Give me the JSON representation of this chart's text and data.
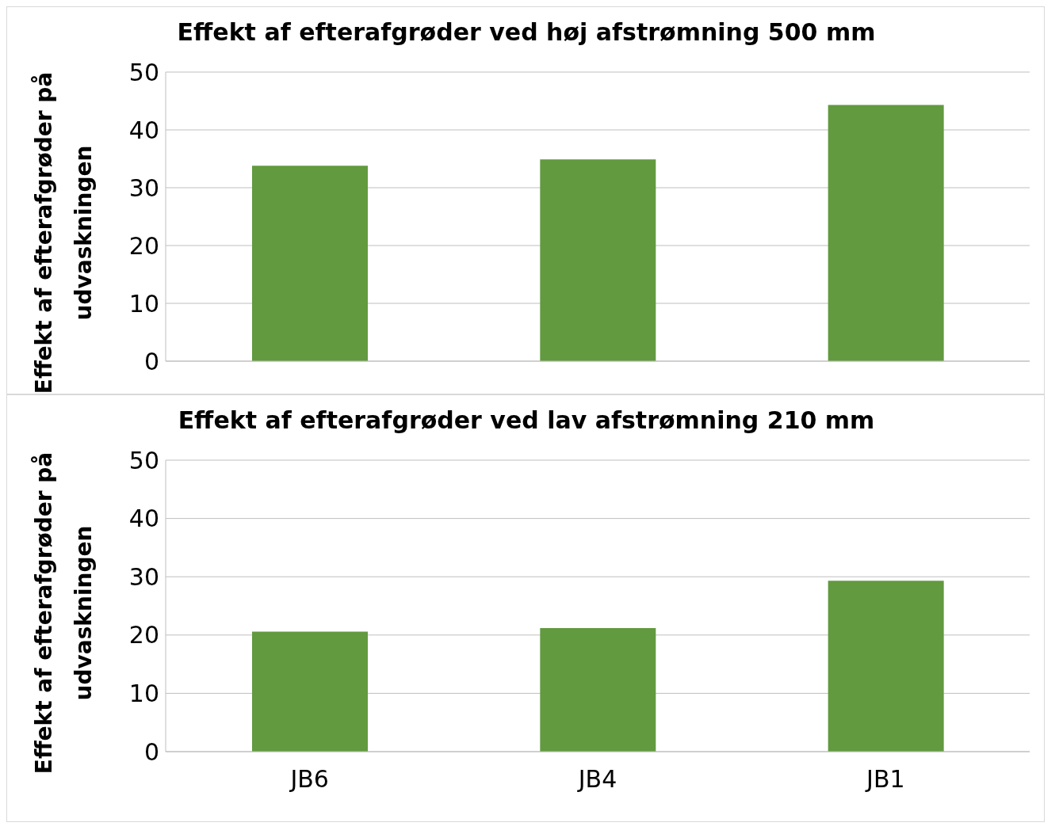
{
  "chart_data": [
    {
      "type": "bar",
      "title": "Effekt af efterafgrøder ved høj afstrømning 500 mm",
      "ylabel": "Effekt af efterafgrøder på udvaskningen",
      "categories": [
        null,
        null,
        null
      ],
      "values": [
        33.8,
        34.9,
        44.3
      ],
      "color": "#629a3f",
      "ylim": [
        0,
        50
      ],
      "yticks": [
        0,
        10,
        20,
        30,
        40,
        50
      ],
      "grid": "y",
      "tick_labels": "y"
    },
    {
      "type": "bar",
      "title": "Effekt af efterafgrøder ved lav afstrømning 210 mm",
      "ylabel": "Effekt af efterafgrøder på udvaskningen",
      "categories": [
        "JB6",
        "JB4",
        "JB1"
      ],
      "values": [
        20.6,
        21.2,
        29.3
      ],
      "color": "#629a3f",
      "ylim": [
        0,
        50
      ],
      "yticks": [
        0,
        10,
        20,
        30,
        40,
        50
      ],
      "grid": "y"
    }
  ]
}
